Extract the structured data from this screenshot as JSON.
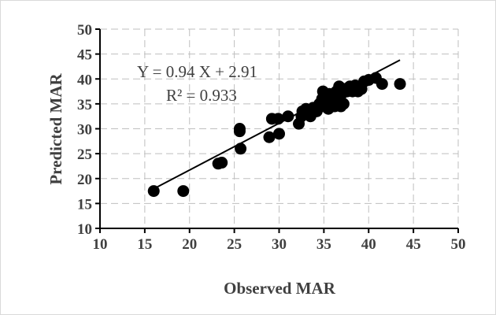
{
  "chart_data": {
    "type": "scatter",
    "xlabel": "Observed MAR",
    "ylabel": "Predicted MAR",
    "xlim": [
      10,
      50
    ],
    "ylim": [
      10,
      50
    ],
    "xticks": [
      "10",
      "15",
      "20",
      "25",
      "30",
      "35",
      "40",
      "45",
      "50"
    ],
    "yticks": [
      "10",
      "15",
      "20",
      "25",
      "30",
      "35",
      "40",
      "45",
      "50"
    ],
    "grid": true,
    "legend": "none",
    "equation": "Y = 0.94 X + 2.91",
    "r_squared_label": "R² = 0.933",
    "trendline": {
      "slope": 0.94,
      "intercept": 2.91,
      "x_range": [
        16,
        43.5
      ]
    },
    "marker_color": "#000000",
    "points": {
      "x": [
        16.0,
        19.3,
        23.2,
        23.6,
        25.6,
        25.6,
        25.7,
        28.9,
        29.2,
        29.9,
        30.0,
        31.0,
        32.2,
        32.5,
        32.6,
        33.0,
        33.2,
        33.5,
        33.8,
        34.2,
        34.5,
        34.8,
        34.9,
        35.0,
        35.2,
        35.3,
        35.5,
        35.6,
        35.8,
        36.0,
        36.2,
        36.4,
        36.5,
        36.7,
        36.9,
        37.0,
        37.2,
        37.4,
        37.6,
        37.9,
        38.2,
        38.5,
        38.8,
        39.2,
        39.5,
        40.0,
        40.8,
        41.5,
        43.5
      ],
      "y": [
        17.5,
        17.5,
        23.0,
        23.2,
        29.5,
        30.0,
        26.0,
        28.3,
        32.0,
        32.0,
        29.0,
        32.5,
        31.0,
        32.5,
        33.5,
        34.0,
        33.0,
        32.5,
        34.2,
        33.5,
        35.0,
        36.0,
        37.5,
        34.5,
        36.5,
        35.5,
        34.0,
        37.0,
        35.5,
        36.5,
        34.5,
        37.5,
        36.0,
        38.5,
        34.5,
        37.0,
        35.0,
        38.0,
        37.5,
        38.5,
        37.5,
        38.7,
        37.5,
        38.0,
        39.5,
        39.8,
        40.2,
        39.0,
        39.0
      ]
    }
  }
}
